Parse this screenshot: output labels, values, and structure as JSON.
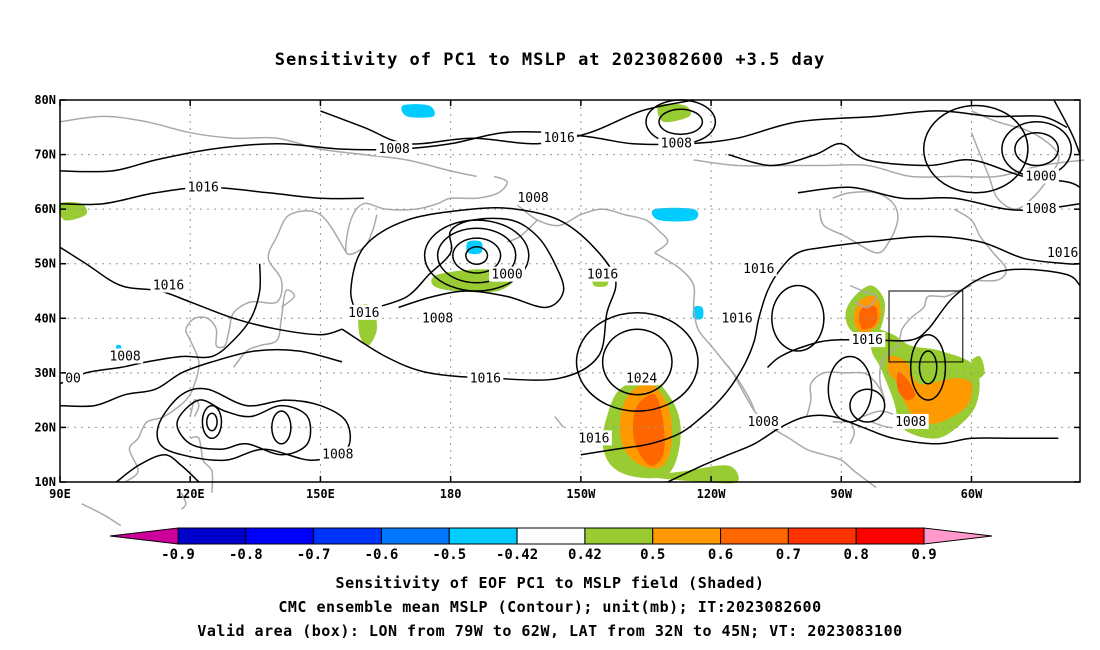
{
  "title": "Sensitivity of PC1 to MSLP at 2023082600 +3.5 day",
  "captions": [
    "Sensitivity of EOF PC1 to MSLP field (Shaded)",
    "CMC ensemble mean MSLP (Contour); unit(mb); IT:2023082600",
    "Valid area (box): LON from 79W to 62W, LAT from 32N to 45N; VT: 2023083100"
  ],
  "map": {
    "lat_labels": [
      "80N",
      "70N",
      "60N",
      "50N",
      "40N",
      "30N",
      "20N",
      "10N"
    ],
    "lat_values": [
      80,
      70,
      60,
      50,
      40,
      30,
      20,
      10
    ],
    "lon_labels": [
      "90E",
      "120E",
      "150E",
      "180",
      "150W",
      "120W",
      "90W",
      "60W"
    ],
    "lon_values": [
      90,
      120,
      150,
      180,
      210,
      240,
      270,
      300
    ],
    "lon_range": [
      90,
      325
    ],
    "lat_range": [
      10,
      80
    ],
    "grid": "dotted",
    "contour_interval": 8,
    "contour_labels": [
      {
        "text": "1008",
        "lon": 167,
        "lat": 71
      },
      {
        "text": "1016",
        "lon": 205,
        "lat": 73
      },
      {
        "text": "1008",
        "lon": 232,
        "lat": 72
      },
      {
        "text": "1000",
        "lon": 316,
        "lat": 66
      },
      {
        "text": "1008",
        "lon": 316,
        "lat": 60
      },
      {
        "text": "1016",
        "lon": 123,
        "lat": 64
      },
      {
        "text": "1008",
        "lon": 199,
        "lat": 62
      },
      {
        "text": "1000",
        "lon": 193,
        "lat": 48
      },
      {
        "text": "1016",
        "lon": 215,
        "lat": 48
      },
      {
        "text": "1016",
        "lon": 115,
        "lat": 46
      },
      {
        "text": "1016",
        "lon": 160,
        "lat": 41
      },
      {
        "text": "1008",
        "lon": 177,
        "lat": 40
      },
      {
        "text": "1016",
        "lon": 251,
        "lat": 49
      },
      {
        "text": "1016",
        "lon": 246,
        "lat": 40
      },
      {
        "text": "1016",
        "lon": 321,
        "lat": 52
      },
      {
        "text": "1016",
        "lon": 276,
        "lat": 36
      },
      {
        "text": "1008",
        "lon": 105,
        "lat": 33
      },
      {
        "text": "1016",
        "lon": 188,
        "lat": 29
      },
      {
        "text": "1024",
        "lon": 224,
        "lat": 29
      },
      {
        "text": "1016",
        "lon": 213,
        "lat": 18
      },
      {
        "text": "1008",
        "lon": 252,
        "lat": 21
      },
      {
        "text": "1008",
        "lon": 286,
        "lat": 21
      },
      {
        "text": "1008",
        "lon": 154,
        "lat": 15
      },
      {
        "text": "00",
        "lon": 93,
        "lat": 29
      }
    ],
    "valid_box": {
      "lon": [
        281,
        298
      ],
      "lat": [
        32,
        45
      ]
    },
    "shading_colors": {
      "green": "#99cc33",
      "orange": "#ff9900",
      "dark_orange": "#ff6600",
      "red_orange": "#ff3300",
      "cyan": "#00ccff"
    }
  },
  "colorbar": {
    "labels": [
      "-0.9",
      "-0.8",
      "-0.7",
      "-0.6",
      "-0.5",
      "-0.42",
      "0.42",
      "0.5",
      "0.6",
      "0.7",
      "0.8",
      "0.9"
    ],
    "colors": [
      "#cc0099",
      "#0000cc",
      "#0000ff",
      "#0033ff",
      "#0077ff",
      "#00ccff",
      "#ffffff",
      "#99cc33",
      "#ff9900",
      "#ff6600",
      "#ff3300",
      "#ff0000",
      "#ff99cc"
    ]
  }
}
